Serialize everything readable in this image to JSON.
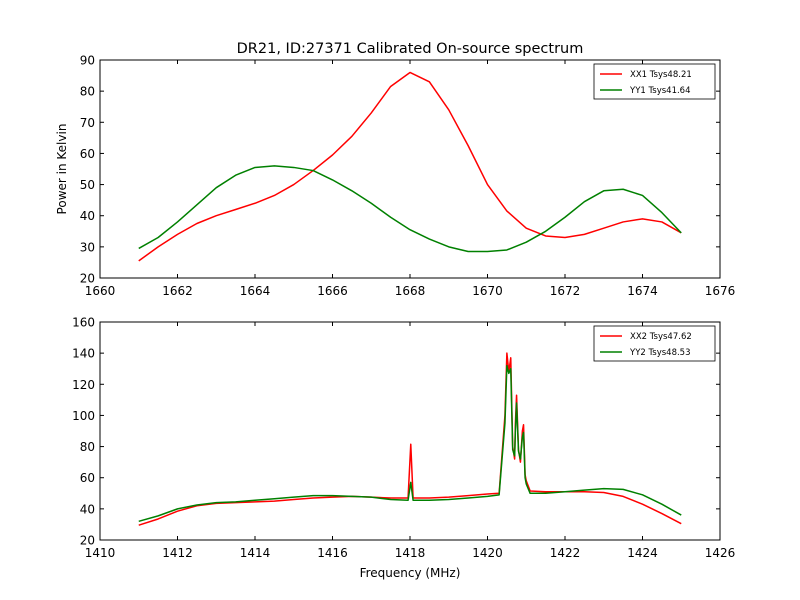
{
  "figure": {
    "title": "DR21, ID:27371 Calibrated On-source spectrum"
  },
  "chart_data": [
    {
      "type": "line",
      "title": "DR21, ID:27371 Calibrated On-source spectrum",
      "xlabel": "",
      "ylabel": "Power in Kelvin",
      "xlim": [
        1660,
        1676
      ],
      "ylim": [
        20,
        90
      ],
      "xticks": [
        "1660",
        "1662",
        "1664",
        "1666",
        "1668",
        "1670",
        "1672",
        "1674",
        "1676"
      ],
      "yticks": [
        "20",
        "30",
        "40",
        "50",
        "60",
        "70",
        "80",
        "90"
      ],
      "legend_position": "top-right",
      "grid": false,
      "series": [
        {
          "name": "XX1 Tsys48.21",
          "color": "#ff0000",
          "x": [
            1661.0,
            1661.5,
            1662.0,
            1662.5,
            1663.0,
            1663.5,
            1664.0,
            1664.5,
            1665.0,
            1665.5,
            1666.0,
            1666.5,
            1667.0,
            1667.5,
            1668.0,
            1668.5,
            1669.0,
            1669.5,
            1670.0,
            1670.5,
            1671.0,
            1671.5,
            1672.0,
            1672.5,
            1673.0,
            1673.5,
            1674.0,
            1674.5,
            1675.0
          ],
          "y": [
            25.5,
            30.0,
            34.0,
            37.5,
            40.0,
            42.0,
            44.0,
            46.5,
            50.0,
            54.5,
            59.5,
            65.5,
            73.0,
            81.5,
            86.0,
            83.0,
            74.0,
            62.5,
            50.0,
            41.5,
            36.0,
            33.5,
            33.0,
            34.0,
            36.0,
            38.0,
            39.0,
            38.0,
            34.5
          ]
        },
        {
          "name": "YY1 Tsys41.64",
          "color": "#008000",
          "x": [
            1661.0,
            1661.5,
            1662.0,
            1662.5,
            1663.0,
            1663.5,
            1664.0,
            1664.5,
            1665.0,
            1665.5,
            1666.0,
            1666.5,
            1667.0,
            1667.5,
            1668.0,
            1668.5,
            1669.0,
            1669.5,
            1670.0,
            1670.5,
            1671.0,
            1671.5,
            1672.0,
            1672.5,
            1673.0,
            1673.5,
            1674.0,
            1674.5,
            1675.0
          ],
          "y": [
            29.5,
            33.0,
            38.0,
            43.5,
            49.0,
            53.0,
            55.5,
            56.0,
            55.5,
            54.5,
            51.5,
            48.0,
            44.0,
            39.5,
            35.5,
            32.5,
            30.0,
            28.5,
            28.5,
            29.0,
            31.5,
            35.0,
            39.5,
            44.5,
            48.0,
            48.5,
            46.5,
            41.0,
            34.5
          ]
        }
      ]
    },
    {
      "type": "line",
      "title": "",
      "xlabel": "Frequency (MHz)",
      "ylabel": "",
      "xlim": [
        1410,
        1426
      ],
      "ylim": [
        20,
        160
      ],
      "xticks": [
        "1410",
        "1412",
        "1414",
        "1416",
        "1418",
        "1420",
        "1422",
        "1424",
        "1426"
      ],
      "yticks": [
        "20",
        "40",
        "60",
        "80",
        "100",
        "120",
        "140",
        "160"
      ],
      "legend_position": "top-right",
      "grid": false,
      "series": [
        {
          "name": "XX2 Tsys47.62",
          "color": "#ff0000",
          "x": [
            1411.0,
            1411.5,
            1412.0,
            1412.5,
            1413.0,
            1413.5,
            1414.0,
            1414.5,
            1415.0,
            1415.5,
            1416.0,
            1416.5,
            1417.0,
            1417.5,
            1417.95,
            1418.02,
            1418.08,
            1418.5,
            1419.0,
            1419.5,
            1420.0,
            1420.3,
            1420.45,
            1420.5,
            1420.55,
            1420.6,
            1420.65,
            1420.7,
            1420.72,
            1420.75,
            1420.8,
            1420.85,
            1420.9,
            1420.93,
            1420.97,
            1421.0,
            1421.1,
            1421.5,
            1422.0,
            1422.5,
            1423.0,
            1423.5,
            1424.0,
            1424.5,
            1425.0
          ],
          "y": [
            29.5,
            33.5,
            38.5,
            42.0,
            43.5,
            44.0,
            44.5,
            45.0,
            46.0,
            47.0,
            47.5,
            48.0,
            47.5,
            47.0,
            47.0,
            81.5,
            47.0,
            47.0,
            47.5,
            48.5,
            49.5,
            50.0,
            100.0,
            140.0,
            128.0,
            137.0,
            80.0,
            72.0,
            95.0,
            113.0,
            78.0,
            70.0,
            90.0,
            94.0,
            62.0,
            58.0,
            51.5,
            51.0,
            51.0,
            51.0,
            50.5,
            48.0,
            43.0,
            37.0,
            30.5
          ]
        },
        {
          "name": "YY2 Tsys48.53",
          "color": "#008000",
          "x": [
            1411.0,
            1411.5,
            1412.0,
            1412.5,
            1413.0,
            1413.5,
            1414.0,
            1414.5,
            1415.0,
            1415.5,
            1416.0,
            1416.5,
            1417.0,
            1417.5,
            1417.95,
            1418.02,
            1418.08,
            1418.5,
            1419.0,
            1419.5,
            1420.0,
            1420.3,
            1420.45,
            1420.5,
            1420.55,
            1420.6,
            1420.65,
            1420.7,
            1420.72,
            1420.75,
            1420.8,
            1420.85,
            1420.9,
            1420.93,
            1420.97,
            1421.0,
            1421.1,
            1421.5,
            1422.0,
            1422.5,
            1423.0,
            1423.5,
            1424.0,
            1424.5,
            1425.0
          ],
          "y": [
            32.0,
            35.5,
            40.0,
            42.5,
            44.0,
            44.5,
            45.5,
            46.5,
            47.5,
            48.5,
            48.5,
            48.0,
            47.5,
            46.0,
            45.5,
            57.0,
            45.5,
            45.5,
            46.0,
            47.0,
            48.0,
            49.0,
            95.0,
            132.0,
            127.0,
            130.0,
            78.0,
            74.0,
            90.0,
            108.0,
            77.0,
            72.0,
            86.0,
            89.0,
            60.0,
            56.0,
            50.0,
            50.0,
            51.0,
            52.0,
            53.0,
            52.5,
            49.0,
            43.0,
            36.0
          ]
        }
      ]
    }
  ]
}
